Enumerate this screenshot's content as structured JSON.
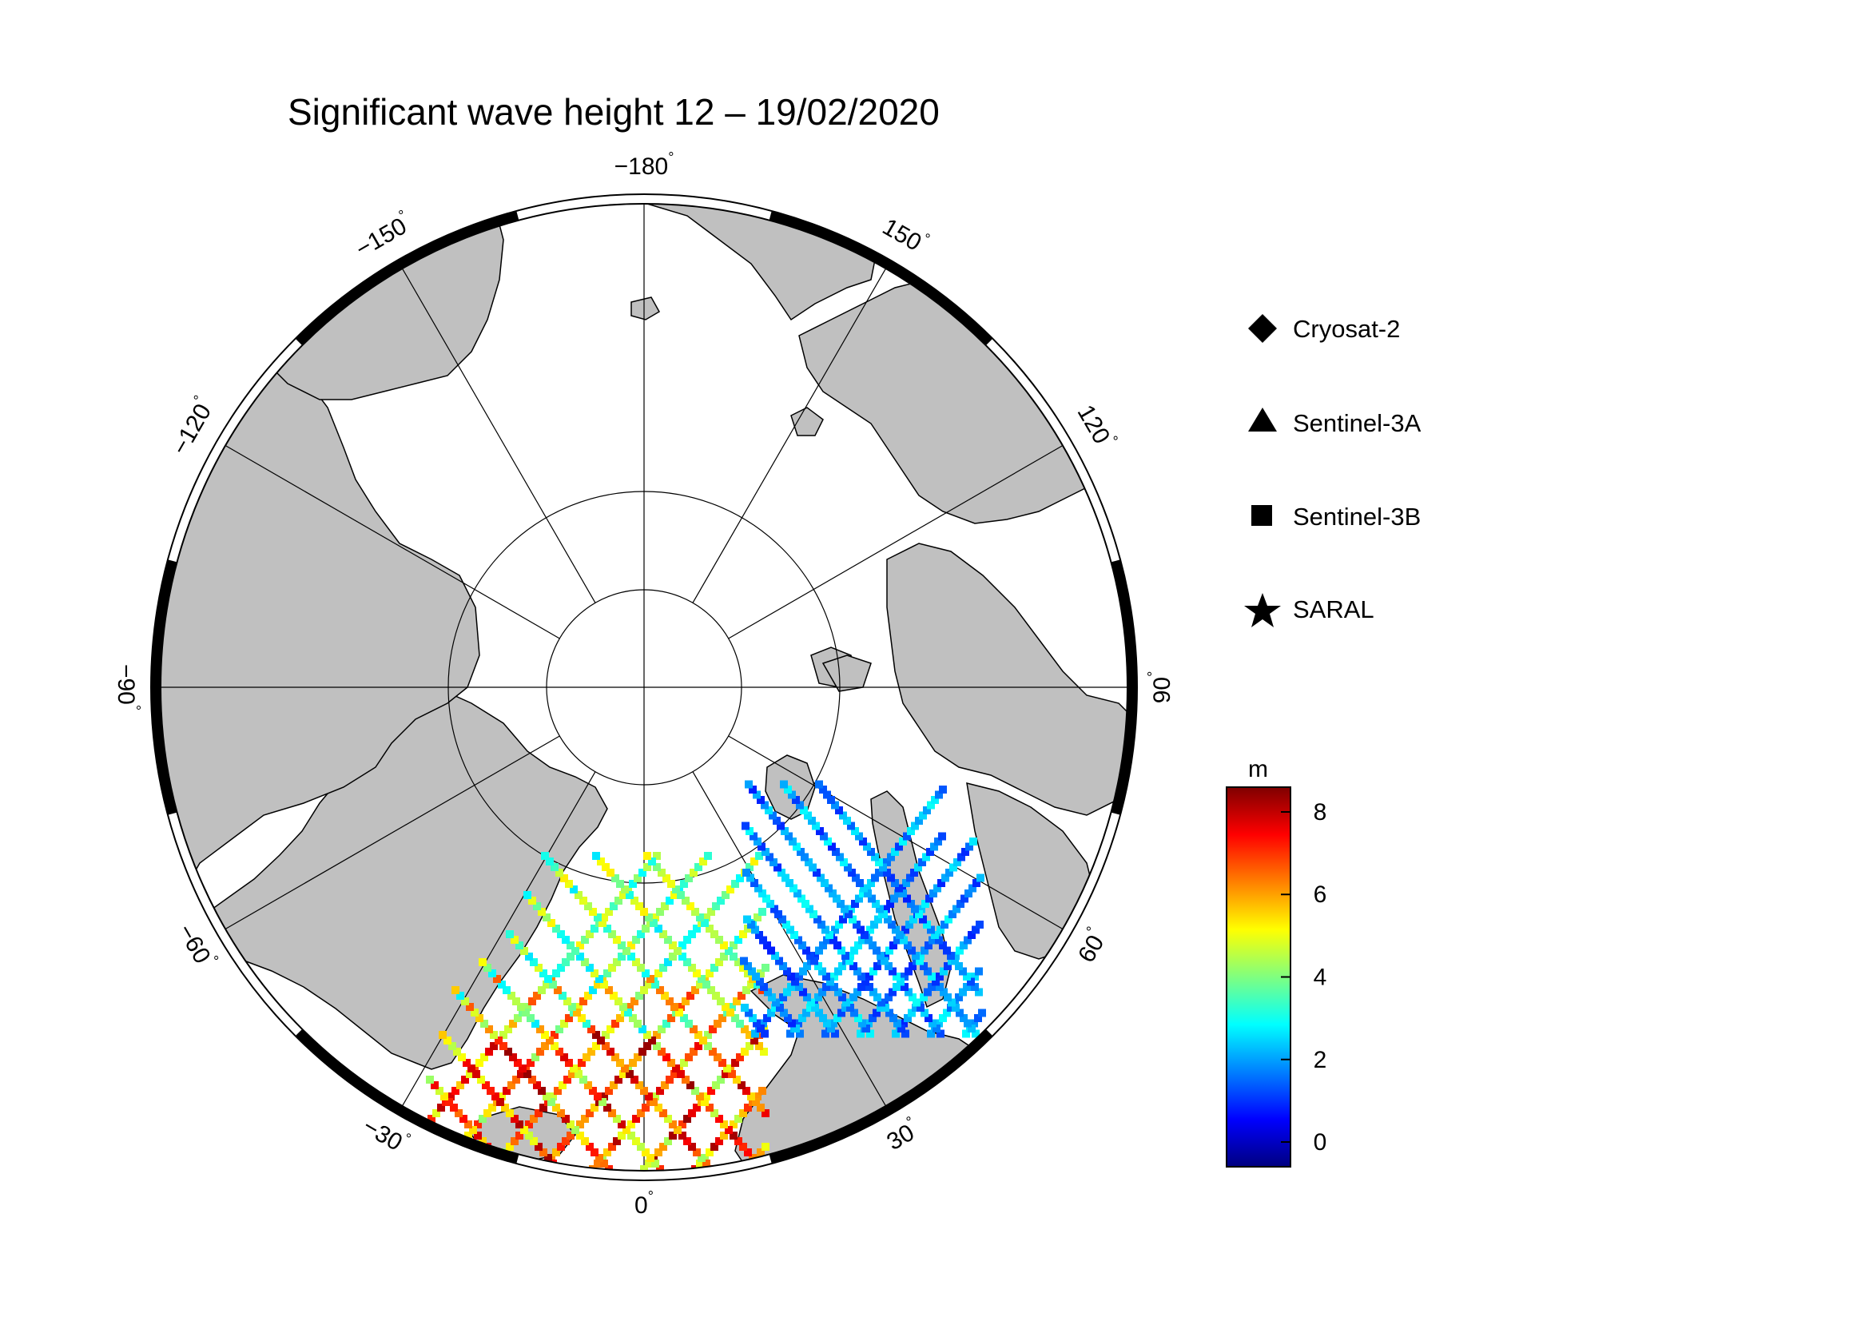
{
  "title": "Significant wave height 12 – 19/02/2020",
  "map": {
    "projection": "north polar stereographic",
    "lon_labels": [
      {
        "lon": 0,
        "text": "0"
      },
      {
        "lon": 30,
        "text": "30"
      },
      {
        "lon": 60,
        "text": "60"
      },
      {
        "lon": 90,
        "text": "90"
      },
      {
        "lon": 120,
        "text": "120"
      },
      {
        "lon": 150,
        "text": "150"
      },
      {
        "lon": 180,
        "text": "−180"
      },
      {
        "lon": -150,
        "text": "−150"
      },
      {
        "lon": -120,
        "text": "−120"
      },
      {
        "lon": -90,
        "text": "−90"
      },
      {
        "lon": -60,
        "text": "−60"
      },
      {
        "lon": -30,
        "text": "−30"
      }
    ],
    "degree_symbol": "°",
    "colors": {
      "land": "#c0c0c0",
      "ocean": "#ffffff",
      "frame": "#000000"
    }
  },
  "legend": {
    "items": [
      {
        "label": "Cryosat-2",
        "symbol": "diamond"
      },
      {
        "label": "Sentinel-3A",
        "symbol": "triangle"
      },
      {
        "label": "Sentinel-3B",
        "symbol": "square"
      },
      {
        "label": "SARAL",
        "symbol": "star"
      }
    ]
  },
  "colorbar": {
    "unit": "m",
    "min": -0.6,
    "max": 8.6,
    "ticks": [
      0,
      2,
      4,
      6,
      8
    ],
    "colormap": "jet"
  }
}
